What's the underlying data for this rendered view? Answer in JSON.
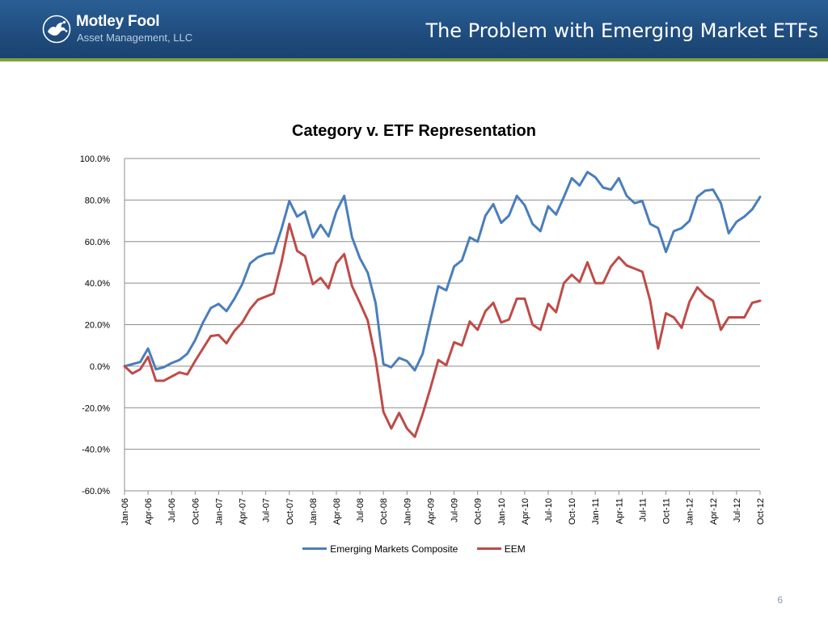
{
  "header": {
    "logo_name": "Motley Fool",
    "logo_sub": "Asset Management, LLC",
    "title": "The Problem with Emerging Market ETFs"
  },
  "colors": {
    "header_bg": "#1f4c7d",
    "accent_rule": "#7ba43a",
    "series_composite": "#4a7ebb",
    "series_eem": "#be4b48"
  },
  "icons": {
    "logo": "jester-logo-icon"
  },
  "page_number": "6",
  "chart_data": {
    "type": "line",
    "title": "Category v. ETF Representation",
    "xlabel": "",
    "ylabel": "",
    "ylim": [
      -60,
      100
    ],
    "yticks": [
      "100.0%",
      "80.0%",
      "60.0%",
      "40.0%",
      "20.0%",
      "0.0%",
      "-20.0%",
      "-40.0%",
      "-60.0%"
    ],
    "ytick_values": [
      100,
      80,
      60,
      40,
      20,
      0,
      -20,
      -40,
      -60
    ],
    "xtick_labels": [
      "Jan-06",
      "Apr-06",
      "Jul-06",
      "Oct-06",
      "Jan-07",
      "Apr-07",
      "Jul-07",
      "Oct-07",
      "Jan-08",
      "Apr-08",
      "Jul-08",
      "Oct-08",
      "Jan-09",
      "Apr-09",
      "Jul-09",
      "Oct-09",
      "Jan-10",
      "Apr-10",
      "Jul-10",
      "Oct-10",
      "Jan-11",
      "Apr-11",
      "Jul-11",
      "Oct-11",
      "Jan-12",
      "Apr-12",
      "Jul-12",
      "Oct-12"
    ],
    "grid": true,
    "legend_position": "bottom",
    "series": [
      {
        "name": "Emerging Markets Composite",
        "values": [
          0.0,
          1.0,
          2.0,
          8.5,
          -1.5,
          -0.5,
          1.5,
          3.0,
          6.0,
          12.5,
          21.0,
          28.0,
          30.0,
          26.5,
          32.5,
          39.5,
          49.5,
          52.5,
          54.0,
          54.5,
          66.0,
          79.5,
          72.0,
          74.5,
          62.0,
          68.0,
          62.5,
          74.5,
          82.0,
          62.0,
          52.0,
          45.0,
          30.5,
          1.0,
          -0.5,
          4.0,
          2.5,
          -2.0,
          6.0,
          22.5,
          38.5,
          36.5,
          48.0,
          51.0,
          62.0,
          60.0,
          72.5,
          78.0,
          69.0,
          72.5,
          82.0,
          77.5,
          68.5,
          65.0,
          77.0,
          73.0,
          81.5,
          90.5,
          87.0,
          93.5,
          91.0,
          86.0,
          85.0,
          90.5,
          82.0,
          78.5,
          79.5,
          68.5,
          66.5,
          55.0,
          65.0,
          66.5,
          70.0,
          81.5,
          84.5,
          85.0,
          78.5,
          64.0,
          69.5,
          72.0,
          75.5,
          81.5
        ]
      },
      {
        "name": "EEM",
        "values": [
          0.0,
          -3.5,
          -1.5,
          4.5,
          -7.0,
          -7.0,
          -5.0,
          -3.0,
          -4.0,
          2.5,
          8.5,
          14.5,
          15.0,
          11.0,
          17.0,
          21.0,
          27.5,
          32.0,
          33.5,
          35.0,
          50.0,
          68.5,
          55.5,
          53.0,
          39.5,
          42.5,
          37.5,
          49.5,
          54.0,
          38.5,
          30.5,
          22.0,
          3.5,
          -22.0,
          -30.0,
          -22.5,
          -30.0,
          -34.0,
          -23.0,
          -10.5,
          3.0,
          0.5,
          11.5,
          10.0,
          21.5,
          17.5,
          26.5,
          30.5,
          21.0,
          22.5,
          32.5,
          32.5,
          20.0,
          17.5,
          30.0,
          26.0,
          40.0,
          44.0,
          40.5,
          50.0,
          40.0,
          40.0,
          48.0,
          52.5,
          48.5,
          47.0,
          45.5,
          31.5,
          8.5,
          25.5,
          23.5,
          18.5,
          31.0,
          38.0,
          34.0,
          31.5,
          17.5,
          23.5,
          23.5,
          23.5,
          30.5,
          31.5
        ]
      }
    ]
  }
}
